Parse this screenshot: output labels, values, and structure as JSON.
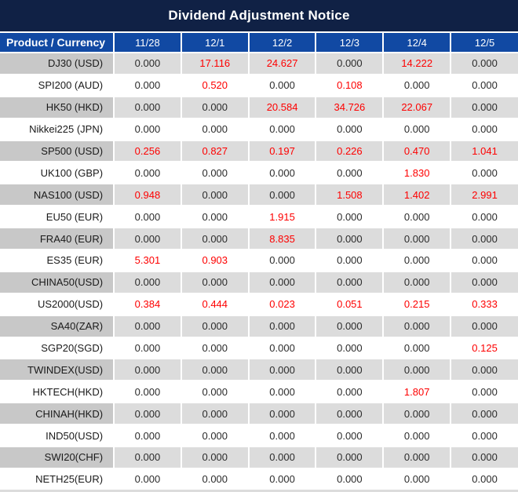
{
  "title": "Dividend Adjustment Notice",
  "table": {
    "product_header": "Product / Currency",
    "date_headers": [
      "11/28",
      "12/1",
      "12/2",
      "12/3",
      "12/4",
      "12/5"
    ],
    "rows": [
      {
        "product": "DJ30 (USD)",
        "values": [
          "0.000",
          "17.116",
          "24.627",
          "0.000",
          "14.222",
          "0.000"
        ]
      },
      {
        "product": "SPI200 (AUD)",
        "values": [
          "0.000",
          "0.520",
          "0.000",
          "0.108",
          "0.000",
          "0.000"
        ]
      },
      {
        "product": "HK50 (HKD)",
        "values": [
          "0.000",
          "0.000",
          "20.584",
          "34.726",
          "22.067",
          "0.000"
        ]
      },
      {
        "product": "Nikkei225 (JPN)",
        "values": [
          "0.000",
          "0.000",
          "0.000",
          "0.000",
          "0.000",
          "0.000"
        ]
      },
      {
        "product": "SP500 (USD)",
        "values": [
          "0.256",
          "0.827",
          "0.197",
          "0.226",
          "0.470",
          "1.041"
        ]
      },
      {
        "product": "UK100 (GBP)",
        "values": [
          "0.000",
          "0.000",
          "0.000",
          "0.000",
          "1.830",
          "0.000"
        ]
      },
      {
        "product": "NAS100 (USD)",
        "values": [
          "0.948",
          "0.000",
          "0.000",
          "1.508",
          "1.402",
          "2.991"
        ]
      },
      {
        "product": "EU50 (EUR)",
        "values": [
          "0.000",
          "0.000",
          "1.915",
          "0.000",
          "0.000",
          "0.000"
        ]
      },
      {
        "product": "FRA40 (EUR)",
        "values": [
          "0.000",
          "0.000",
          "8.835",
          "0.000",
          "0.000",
          "0.000"
        ]
      },
      {
        "product": "ES35 (EUR)",
        "values": [
          "5.301",
          "0.903",
          "0.000",
          "0.000",
          "0.000",
          "0.000"
        ]
      },
      {
        "product": "CHINA50(USD)",
        "values": [
          "0.000",
          "0.000",
          "0.000",
          "0.000",
          "0.000",
          "0.000"
        ]
      },
      {
        "product": "US2000(USD)",
        "values": [
          "0.384",
          "0.444",
          "0.023",
          "0.051",
          "0.215",
          "0.333"
        ]
      },
      {
        "product": "SA40(ZAR)",
        "values": [
          "0.000",
          "0.000",
          "0.000",
          "0.000",
          "0.000",
          "0.000"
        ]
      },
      {
        "product": "SGP20(SGD)",
        "values": [
          "0.000",
          "0.000",
          "0.000",
          "0.000",
          "0.000",
          "0.125"
        ]
      },
      {
        "product": "TWINDEX(USD)",
        "values": [
          "0.000",
          "0.000",
          "0.000",
          "0.000",
          "0.000",
          "0.000"
        ]
      },
      {
        "product": "HKTECH(HKD)",
        "values": [
          "0.000",
          "0.000",
          "0.000",
          "0.000",
          "1.807",
          "0.000"
        ]
      },
      {
        "product": "CHINAH(HKD)",
        "values": [
          "0.000",
          "0.000",
          "0.000",
          "0.000",
          "0.000",
          "0.000"
        ]
      },
      {
        "product": "IND50(USD)",
        "values": [
          "0.000",
          "0.000",
          "0.000",
          "0.000",
          "0.000",
          "0.000"
        ]
      },
      {
        "product": "SWI20(CHF)",
        "values": [
          "0.000",
          "0.000",
          "0.000",
          "0.000",
          "0.000",
          "0.000"
        ]
      },
      {
        "product": "NETH25(EUR)",
        "values": [
          "0.000",
          "0.000",
          "0.000",
          "0.000",
          "0.000",
          "0.000"
        ]
      }
    ]
  },
  "colors": {
    "title_bg": "#102145",
    "header_bg": "#1149a3",
    "header_text": "#ffffff",
    "separator": "#ffffff",
    "alt_row_values_bg": "#dcdcdc",
    "alt_row_label_bg": "#c8c8c8",
    "plain_row_bg": "#ffffff",
    "value_text": "#2b2b2b",
    "nonzero_value_text": "#fe0000"
  }
}
